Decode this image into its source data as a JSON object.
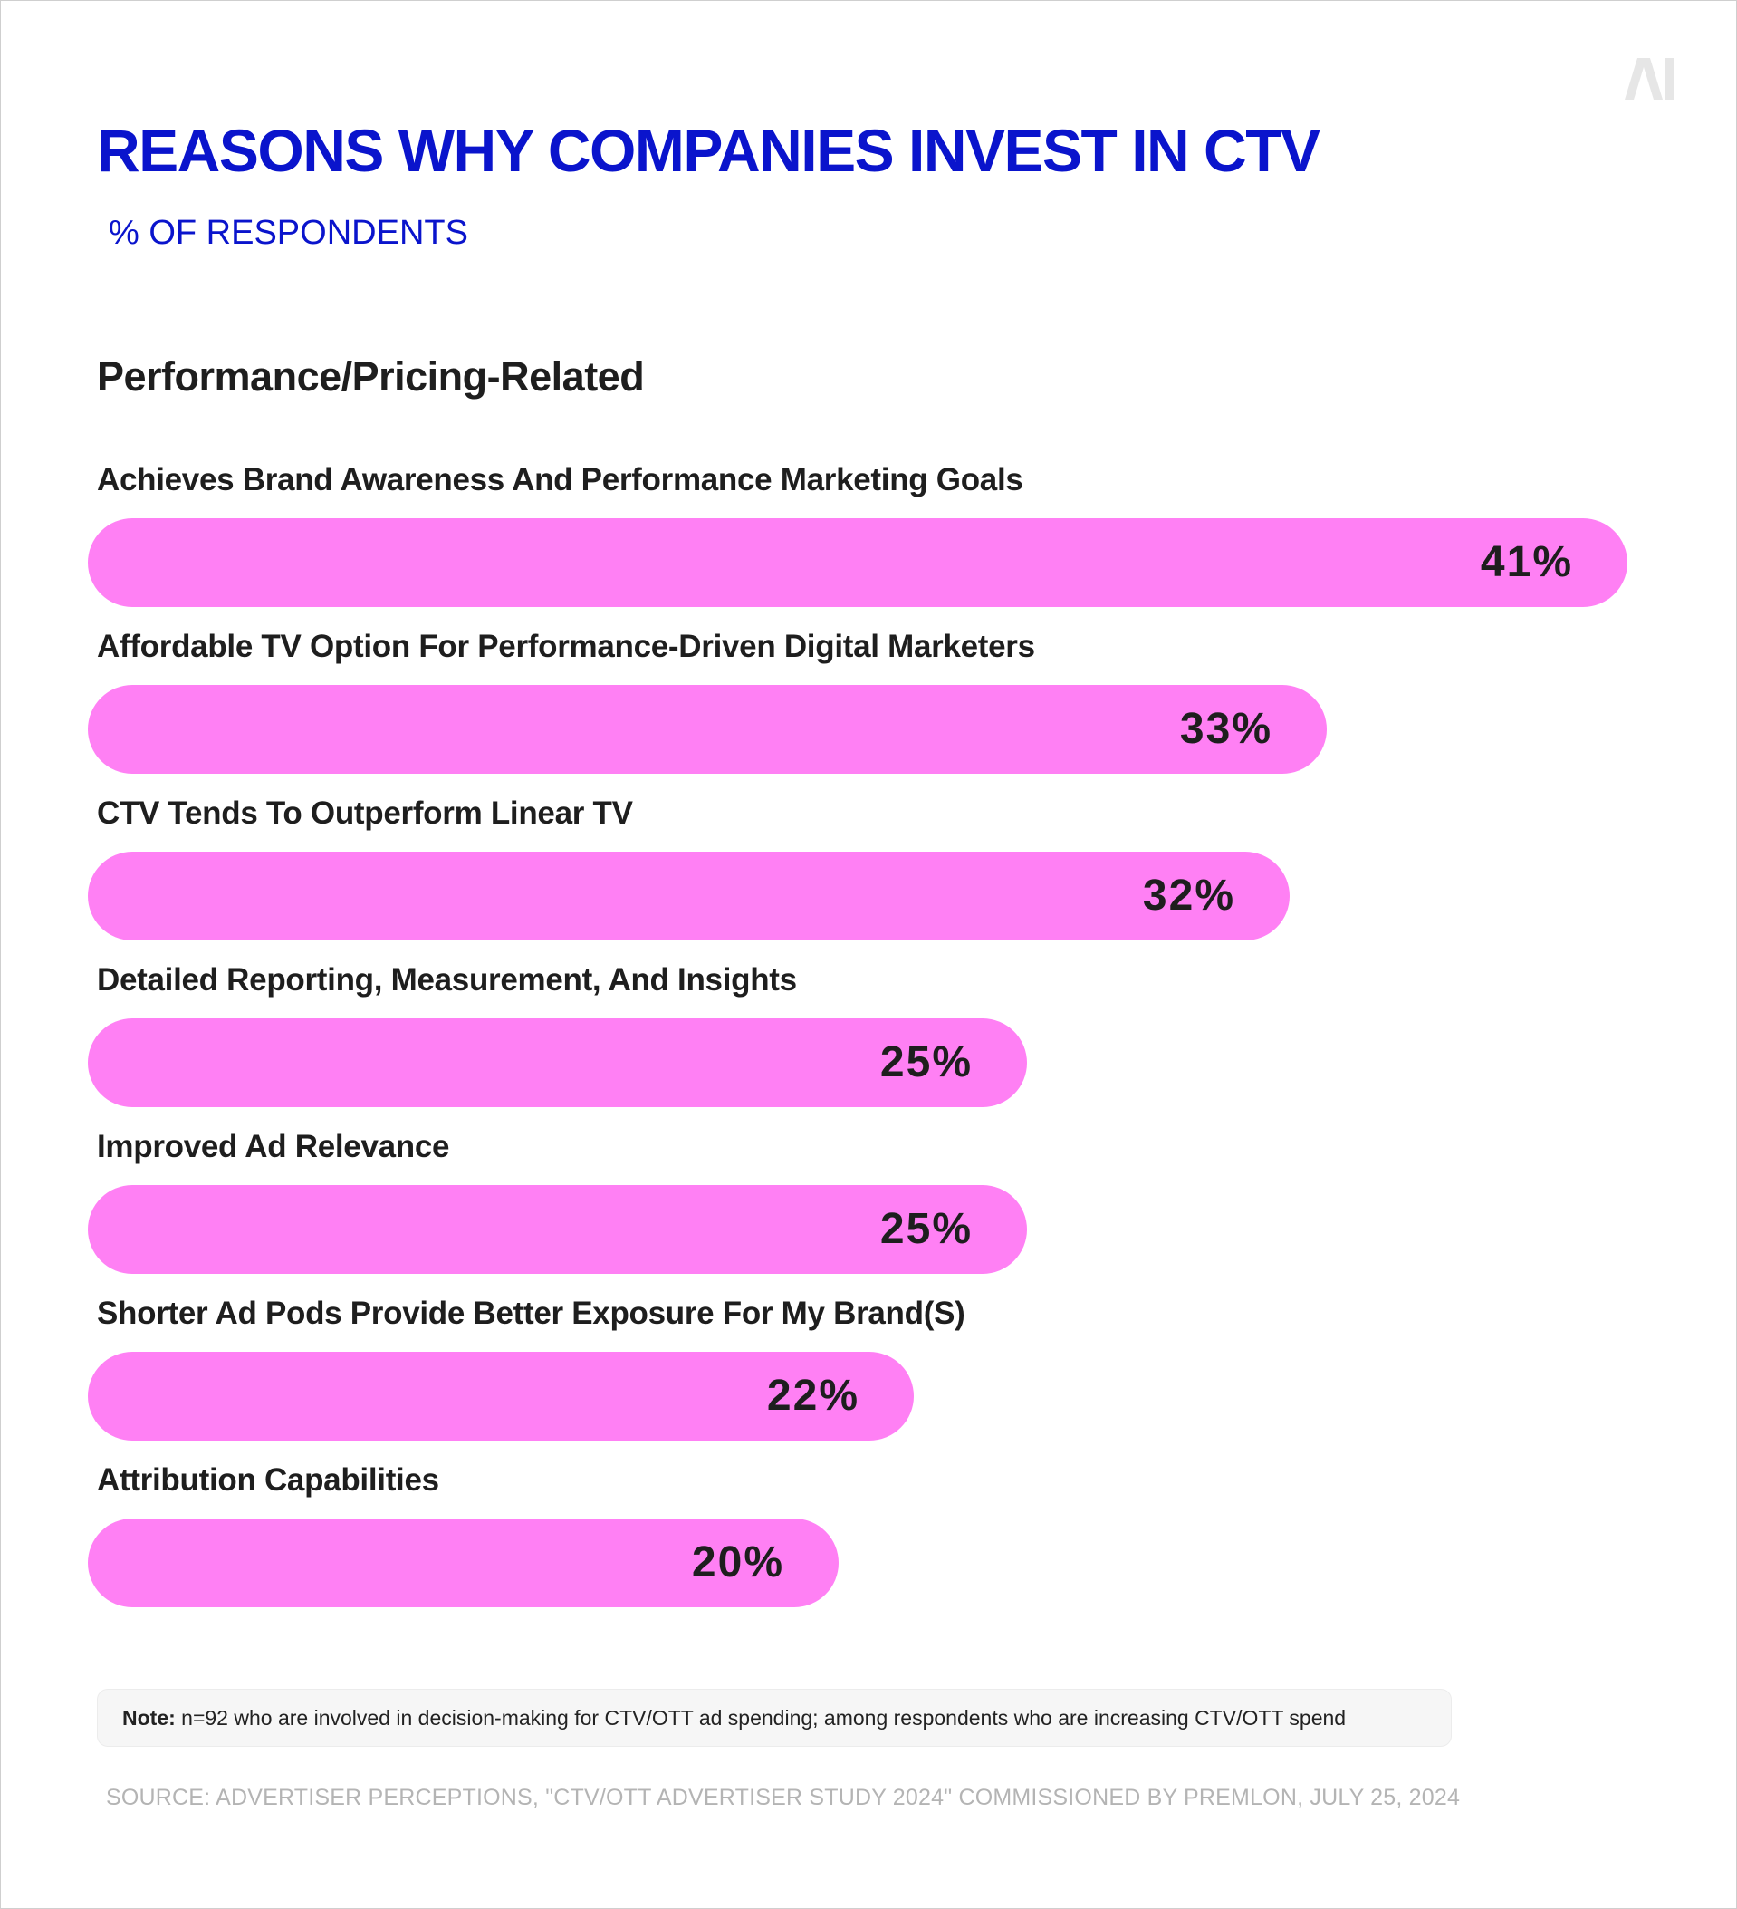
{
  "header": {
    "logo_text": "AI",
    "title": "REASONS WHY COMPANIES INVEST IN CTV",
    "subtitle": "% OF RESPONDENTS",
    "section": "Performance/Pricing-Related"
  },
  "colors": {
    "title": "#0a14cc",
    "bar": "#ff80f4",
    "text": "#1e1e1e",
    "logo": "#e6e6e6"
  },
  "chart_data": {
    "type": "bar",
    "orientation": "horizontal",
    "title": "REASONS WHY COMPANIES INVEST IN CTV",
    "subtitle": "% OF RESPONDENTS",
    "categories": [
      "Achieves Brand Awareness And Performance Marketing Goals",
      "Affordable TV Option For Performance-Driven Digital Marketers",
      "CTV Tends To Outperform Linear TV",
      "Detailed Reporting, Measurement, And Insights",
      "Improved Ad Relevance",
      "Shorter Ad Pods Provide Better Exposure For My Brand(S)",
      "Attribution Capabilities"
    ],
    "values": [
      41,
      33,
      32,
      25,
      25,
      22,
      20
    ],
    "value_labels": [
      "41%",
      "33%",
      "32%",
      "25%",
      "25%",
      "22%",
      "20%"
    ],
    "unit": "%",
    "grid": false,
    "legend": "none"
  },
  "footer": {
    "note_label": "Note:",
    "note_text": " n=92 who are involved in decision-making for CTV/OTT ad spending; among respondents who are increasing CTV/OTT spend",
    "source": "SOURCE: ADVERTISER PERCEPTIONS, \"CTV/OTT ADVERTISER STUDY 2024\" COMMISSIONED BY PREMLON, JULY 25, 2024"
  }
}
